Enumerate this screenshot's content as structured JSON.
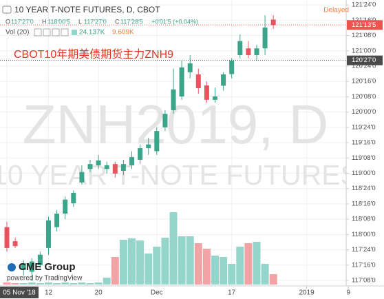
{
  "chart_data": {
    "type": "candlestick",
    "title": "10 YEAR T-NOTE FUTURES, D, CBOT",
    "status": "Delayed",
    "legend_ohlc": [
      {
        "key": "O",
        "text": "117'27'0"
      },
      {
        "key": "H",
        "text": "118'00'5"
      },
      {
        "key": "L",
        "text": "117'27'0"
      },
      {
        "key": "C",
        "text": "117'28'5"
      }
    ],
    "legend_change": "+0'01'5 (+0.04%)",
    "volume_label": "Vol (20)",
    "volume_readings": [
      "24.137K",
      "9.609K"
    ],
    "watermark": [
      "ZNH2019, D",
      "10 YEAR T-NOTE FUTURES"
    ],
    "annotation": "CBOT10年期美债期货主力ZNH9",
    "logo": "CME Group",
    "powered_by": "powered by TradingView",
    "categories": [
      "05 Nov '18",
      null,
      null,
      null,
      null,
      "12",
      null,
      null,
      null,
      null,
      null,
      "20",
      null,
      null,
      null,
      null,
      null,
      null,
      "Dec",
      null,
      null,
      null,
      null,
      null,
      null,
      null,
      null,
      "17",
      null,
      null,
      null,
      null,
      null
    ],
    "future_ticks": [
      {
        "value": 36,
        "label": "2019"
      },
      {
        "value": 41,
        "label": "9"
      }
    ],
    "open": [
      118.12,
      117.89,
      117.42,
      117.39,
      117.5,
      117.78,
      118.12,
      118.34,
      118.51,
      118.85,
      119.07,
      119.13,
      119.07,
      119.15,
      119.04,
      119.13,
      119.22,
      119.41,
      119.36,
      119.75,
      120.03,
      120.255,
      120.65,
      120.615,
      120.435,
      120.2,
      120.43,
      120.62,
      120.93,
      121.04,
      120.93,
      121.04,
      121.51
    ],
    "high": [
      118.21,
      117.95,
      117.58,
      117.61,
      117.72,
      118.29,
      118.4,
      118.62,
      118.72,
      119.13,
      119.22,
      119.3,
      119.19,
      119.19,
      119.22,
      119.36,
      119.47,
      119.58,
      119.75,
      120.03,
      120.71,
      120.84,
      120.93,
      120.71,
      120.5,
      120.4,
      120.65,
      120.88,
      121.27,
      121.16,
      121.1,
      121.58,
      121.58
    ],
    "low": [
      117.72,
      117.78,
      117.33,
      117.24,
      117.45,
      117.67,
      118.05,
      118.25,
      118.45,
      118.815,
      119.02,
      119.07,
      118.995,
      118.93,
      118.97,
      119.07,
      119.15,
      119.3,
      119.3,
      119.69,
      119.97,
      120.2,
      120.55,
      120.3,
      120.15,
      120.15,
      120.35,
      120.55,
      120.88,
      120.88,
      120.84,
      120.93,
      121.36
    ],
    "close": [
      117.78,
      117.81,
      117.53,
      117.56,
      117.67,
      118.23,
      118.34,
      118.57,
      118.68,
      119.02,
      119.15,
      119.21,
      119.13,
      118.995,
      119.15,
      119.265,
      119.41,
      119.47,
      119.69,
      119.97,
      120.37,
      120.73,
      120.795,
      120.39,
      120.2,
      120.255,
      120.615,
      120.84,
      121.16,
      120.93,
      121.04,
      121.38,
      121.42
    ],
    "volume": [
      3,
      2,
      2,
      3,
      2,
      3,
      2,
      3,
      2,
      3,
      2,
      3,
      10,
      40,
      65,
      67,
      64,
      45,
      55,
      68,
      105,
      70,
      70,
      60,
      52,
      42,
      40,
      30,
      55,
      60,
      62,
      30,
      15
    ],
    "up_color": "#3aa58a",
    "down_color": "#e8535f",
    "up_volume_color": "#94d5cc",
    "down_volume_color": "#f2a3a6",
    "ylim": [
      117.16,
      121.83
    ],
    "vlim": [
      0,
      120
    ],
    "yticks": [
      {
        "value": 117.25,
        "label": "117'08'0"
      },
      {
        "value": 117.5,
        "label": "117'16'0"
      },
      {
        "value": 117.75,
        "label": "117'24'0"
      },
      {
        "value": 118,
        "label": "118'00'0"
      },
      {
        "value": 118.25,
        "label": "118'08'0"
      },
      {
        "value": 118.5,
        "label": "118'16'0"
      },
      {
        "value": 118.75,
        "label": "118'24'0"
      },
      {
        "value": 119,
        "label": "119'00'0"
      },
      {
        "value": 119.25,
        "label": "119'08'0"
      },
      {
        "value": 119.5,
        "label": "119'16'0"
      },
      {
        "value": 119.75,
        "label": "119'24'0"
      },
      {
        "value": 120,
        "label": "120'00'0"
      },
      {
        "value": 120.25,
        "label": "120'08'0"
      },
      {
        "value": 120.5,
        "label": "120'16'0"
      },
      {
        "value": 120.75,
        "label": "120'24'0"
      },
      {
        "value": 121,
        "label": "121'00'0"
      },
      {
        "value": 121.25,
        "label": "121'08'0"
      },
      {
        "value": 121.5,
        "label": "121'16'0"
      },
      {
        "value": 121.75,
        "label": "121'24'0"
      }
    ],
    "price_lines": [
      {
        "value": 121.421875,
        "label": "121'13'5",
        "color": "#ef5350"
      },
      {
        "value": 120.84375,
        "label": "120'27'0",
        "color": "#4a4a4a"
      }
    ],
    "grid": true
  }
}
